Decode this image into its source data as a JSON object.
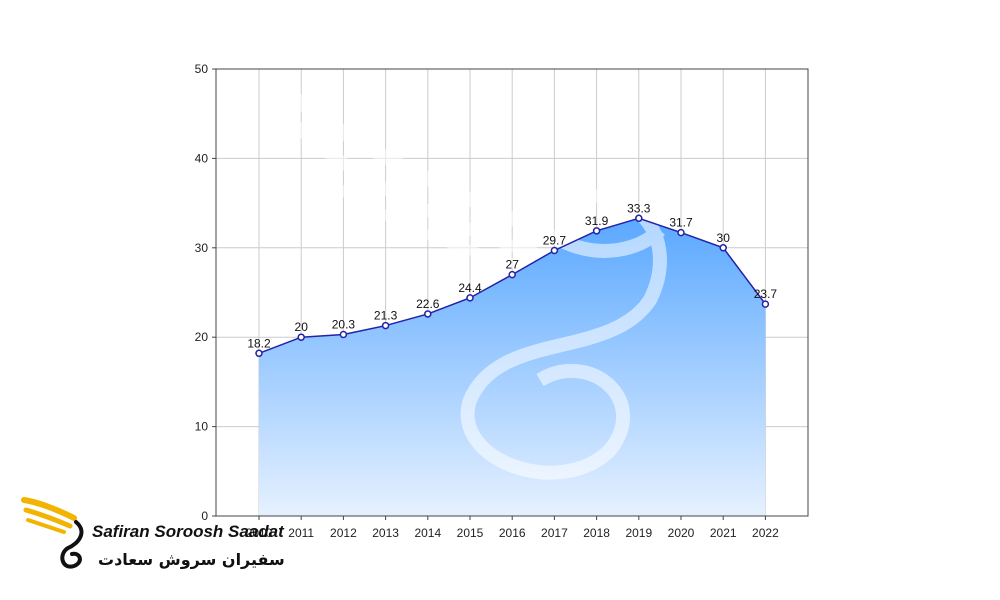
{
  "chart_data": {
    "type": "area",
    "x": [
      "2010",
      "2011",
      "2012",
      "2013",
      "2014",
      "2015",
      "2016",
      "2017",
      "2018",
      "2019",
      "2020",
      "2021",
      "2022"
    ],
    "values": [
      18.2,
      20,
      20.3,
      21.3,
      22.6,
      24.4,
      27,
      29.7,
      31.9,
      33.3,
      31.7,
      30,
      23.7
    ],
    "data_labels": [
      "18.2",
      "20",
      "20.3",
      "21.3",
      "22.6",
      "24.4",
      "27",
      "29.7",
      "31.9",
      "33.3",
      "31.7",
      "30",
      "23.7"
    ],
    "yticks": [
      "0",
      "10",
      "20",
      "30",
      "40",
      "50"
    ],
    "ylim": [
      0,
      50
    ],
    "grid": true,
    "legend": "none",
    "title": "",
    "xlabel": "",
    "ylabel": "",
    "colors": {
      "line": "#2222aa",
      "fill_top": "#5aa8ff",
      "fill_bottom": "#e6f1ff",
      "grid": "#cccccc"
    }
  },
  "logo": {
    "name_en": "Safiran Soroosh Saadat",
    "name_fa": "سفیران سروش سعادت"
  }
}
